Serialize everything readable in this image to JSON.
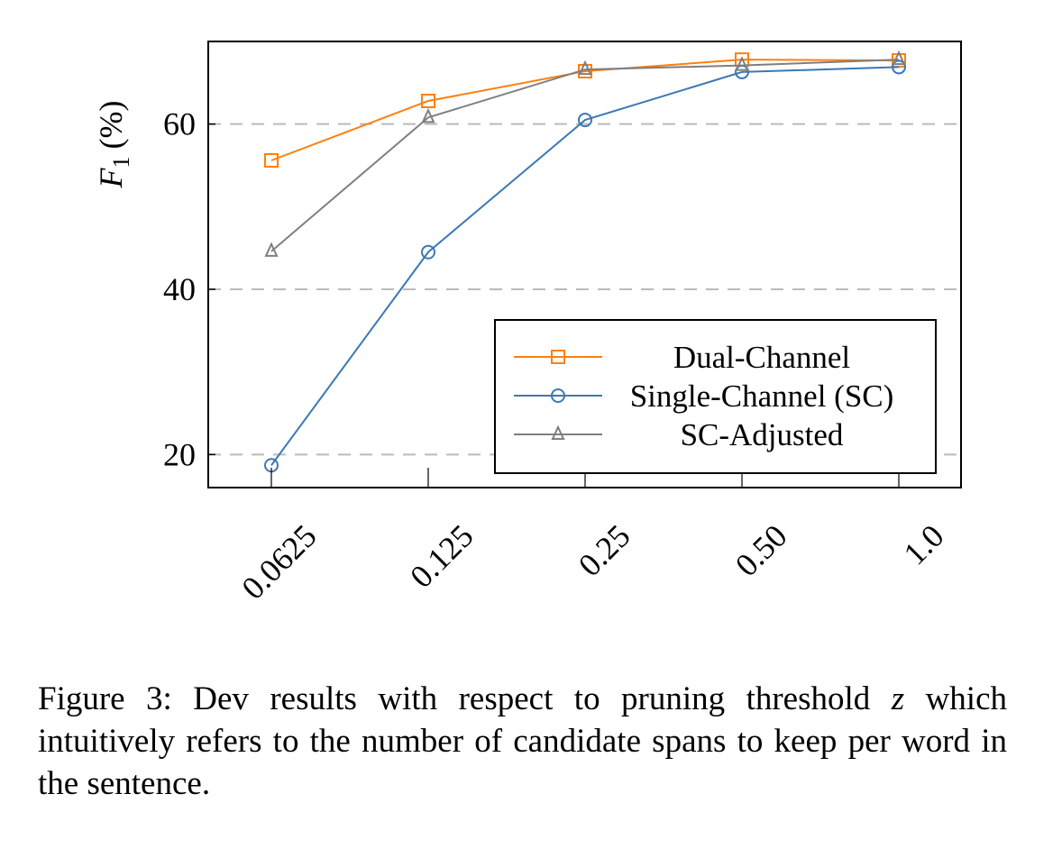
{
  "chart_data": {
    "type": "line",
    "categories": [
      "0.0625",
      "0.125",
      "0.25",
      "0.50",
      "1.0"
    ],
    "ylabel_var": "F",
    "ylabel_sub": "1",
    "ylabel_unit": "(%)",
    "xlabel": "",
    "ylim": [
      16,
      70
    ],
    "yticks": [
      20,
      40,
      60
    ],
    "grid": "horizontal dashed",
    "legend_position": "bottom-right",
    "series": [
      {
        "name": "Dual-Channel",
        "color": "#ff7f0e",
        "marker": "square",
        "values": [
          55.6,
          62.8,
          66.4,
          67.8,
          67.7
        ]
      },
      {
        "name": "Single-Channel (SC)",
        "color": "#3c78b4",
        "marker": "circle",
        "values": [
          18.7,
          44.5,
          60.5,
          66.3,
          66.9
        ]
      },
      {
        "name": "SC-Adjusted",
        "color": "#7f7f7f",
        "marker": "triangle",
        "values": [
          44.6,
          60.8,
          66.6,
          67.1,
          67.8
        ]
      }
    ]
  },
  "caption": {
    "part1": "Figure 3: Dev results with respect to pruning threshold ",
    "var": "z",
    "part2": " which intuitively refers to the number of candidate spans to keep per word in the sentence."
  }
}
